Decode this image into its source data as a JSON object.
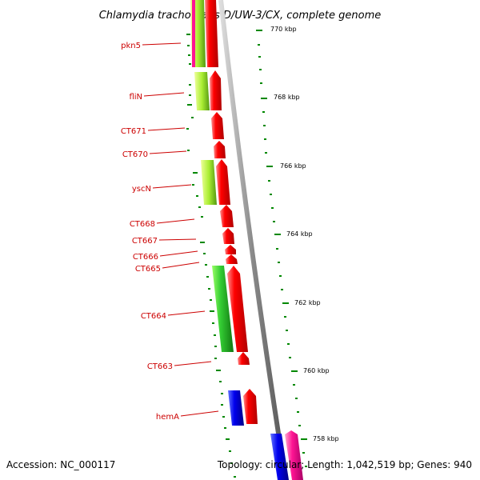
{
  "title": "Chlamydia trachomatis D/UW-3/CX, complete genome",
  "footer": {
    "accession": "Accession: NC_000117",
    "summary": "Topology: circular; Length: 1,042,519 bp; Genes: 940"
  },
  "colors": {
    "forward": "#ff0000",
    "reverse": "#00cc00",
    "blue": "#0000ee",
    "pink": "#ff1493",
    "tick": "#008800",
    "backbone": "#888888",
    "label": "#cc0000"
  },
  "gene_labels": [
    {
      "name": "pkn5"
    },
    {
      "name": "fliN"
    },
    {
      "name": "CT671"
    },
    {
      "name": "CT670"
    },
    {
      "name": "yscN"
    },
    {
      "name": "CT668"
    },
    {
      "name": "CT667"
    },
    {
      "name": "CT666"
    },
    {
      "name": "CT665"
    },
    {
      "name": "CT664"
    },
    {
      "name": "CT663"
    },
    {
      "name": "hemA"
    }
  ],
  "kbp_labels": [
    "770 kbp",
    "768 kbp",
    "766 kbp",
    "764 kbp",
    "762 kbp",
    "760 kbp",
    "758 kbp"
  ]
}
